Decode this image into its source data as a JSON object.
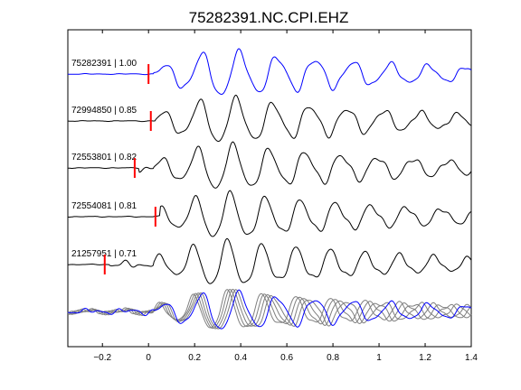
{
  "chart_data": {
    "type": "line",
    "title": "75282391.NC.CPI.EHZ",
    "xlim": [
      -0.35,
      1.4
    ],
    "xticks": [
      -0.2,
      0,
      0.2,
      0.4,
      0.6,
      0.8,
      1,
      1.2,
      1.4
    ],
    "xtick_labels": [
      "−0.2",
      "0",
      "0.2",
      "0.4",
      "0.6",
      "0.8",
      "1",
      "1.2",
      "1.4"
    ],
    "yticks_visible": false,
    "grid": false,
    "colors": {
      "reference": "#0000ff",
      "other": "#000000",
      "overlay_other": "#7f7f7f",
      "pick": "#ff0000"
    },
    "series": [
      {
        "name": "75282391 | 1.00",
        "label": "75282391 | 1.00",
        "pick_time": 0.0
      },
      {
        "name": "72994850 | 0.85",
        "label": "72994850 | 0.85",
        "pick_time": 0.01
      },
      {
        "name": "72553801 | 0.82",
        "label": "72553801 | 0.82",
        "pick_time": -0.06
      },
      {
        "name": "72554081 | 0.81",
        "label": "72554081 | 0.81",
        "pick_time": 0.03
      },
      {
        "name": "21257951 | 0.71",
        "label": "21257951 | 0.71",
        "pick_time": -0.19
      }
    ]
  }
}
